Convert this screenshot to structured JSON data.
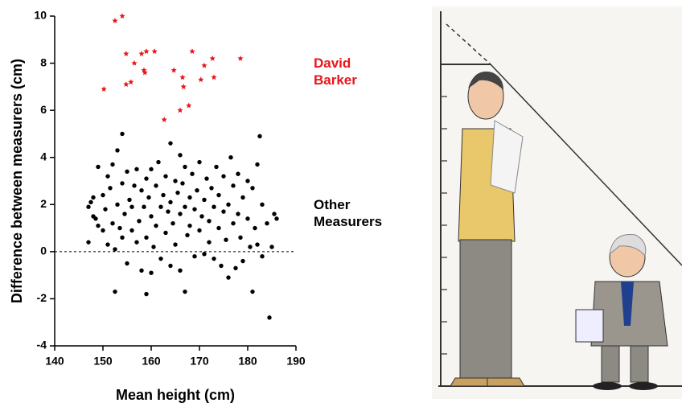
{
  "chart_data": {
    "type": "scatter",
    "xlabel": "Mean height (cm)",
    "ylabel": "Difference between measurers (cm)",
    "xlim": [
      140,
      190
    ],
    "xticks": [
      140,
      150,
      160,
      170,
      180,
      190
    ],
    "ylim": [
      -4,
      10
    ],
    "yticks": [
      -4,
      -2,
      0,
      2,
      4,
      6,
      8,
      10
    ],
    "reference_line": 0,
    "series": [
      {
        "name": "David Barker",
        "color": "#e8161b",
        "marker": "star",
        "x": [
          150.2,
          152.5,
          154.0,
          154.8,
          156.5,
          158.0,
          159.0,
          160.7,
          154.8,
          155.8,
          158.5,
          158.7,
          164.7,
          166.5,
          166.7,
          168.5,
          170.3,
          171.0,
          172.7,
          173.0,
          178.5,
          162.7,
          166.0,
          167.8
        ],
        "values": [
          6.9,
          9.8,
          10.0,
          8.4,
          8.0,
          8.4,
          8.5,
          8.5,
          7.1,
          7.2,
          7.7,
          7.6,
          7.7,
          7.4,
          7.0,
          8.5,
          7.3,
          7.9,
          8.2,
          7.4,
          8.2,
          5.6,
          6.0,
          6.2
        ]
      },
      {
        "name": "Other Measurers",
        "color": "#000000",
        "marker": "circle",
        "x": [
          147,
          147,
          147.5,
          148,
          148,
          148.5,
          149,
          149,
          150,
          150,
          150.5,
          151,
          151,
          151.5,
          152,
          152,
          152.5,
          152.5,
          153,
          153,
          153.5,
          154,
          154,
          154,
          154.5,
          155,
          155,
          155.5,
          156,
          156,
          156.5,
          157,
          157,
          157.5,
          158,
          158,
          158.5,
          159,
          159,
          159,
          159.5,
          160,
          160,
          160,
          160.5,
          161,
          161,
          161.5,
          162,
          162,
          162.5,
          163,
          163,
          163.5,
          164,
          164,
          164,
          164.5,
          165,
          165,
          165.5,
          166,
          166,
          166,
          166.5,
          167,
          167,
          167,
          167.5,
          168,
          168,
          168.5,
          169,
          169,
          169.5,
          170,
          170,
          170.5,
          171,
          171,
          171.5,
          172,
          172,
          172.5,
          173,
          173,
          173.5,
          174,
          174,
          174.5,
          175,
          175,
          175.5,
          176,
          176,
          176.5,
          177,
          177,
          177.5,
          178,
          178,
          178.5,
          179,
          179,
          180,
          180,
          180.5,
          181,
          181,
          181.5,
          182,
          182,
          182.5,
          183,
          183,
          184,
          184.5,
          185,
          185.5,
          186
        ],
        "values": [
          0.4,
          1.9,
          2.1,
          1.5,
          2.3,
          1.4,
          3.6,
          1.1,
          2.4,
          0.9,
          1.8,
          3.2,
          0.3,
          2.7,
          1.2,
          3.7,
          0.1,
          -1.7,
          4.3,
          2.0,
          1.0,
          5.0,
          0.6,
          2.9,
          1.6,
          3.4,
          -0.5,
          2.2,
          0.9,
          1.9,
          2.8,
          3.5,
          0.4,
          1.3,
          2.6,
          -0.8,
          1.9,
          -1.8,
          3.1,
          0.6,
          2.3,
          1.5,
          3.5,
          -0.9,
          0.2,
          2.8,
          1.1,
          3.8,
          1.9,
          -0.3,
          2.4,
          0.8,
          3.2,
          1.7,
          4.6,
          2.1,
          -0.6,
          1.2,
          3.0,
          0.3,
          2.5,
          1.6,
          4.1,
          -0.8,
          2.9,
          -1.7,
          1.9,
          3.6,
          0.7,
          2.3,
          1.1,
          3.3,
          1.8,
          -0.2,
          2.6,
          0.9,
          3.8,
          1.5,
          2.2,
          -0.1,
          3.1,
          1.3,
          0.4,
          2.7,
          -0.3,
          1.9,
          3.6,
          1.0,
          2.4,
          -0.6,
          1.7,
          3.2,
          0.5,
          -1.1,
          2.0,
          4.0,
          1.2,
          2.8,
          -0.7,
          1.6,
          3.3,
          0.6,
          2.3,
          -0.4,
          1.4,
          3.0,
          0.2,
          -1.7,
          2.7,
          1.0,
          3.7,
          0.3,
          4.9,
          2.0,
          -0.2,
          1.2,
          -2.8,
          0.2,
          1.6,
          1.4
        ]
      }
    ]
  }
}
